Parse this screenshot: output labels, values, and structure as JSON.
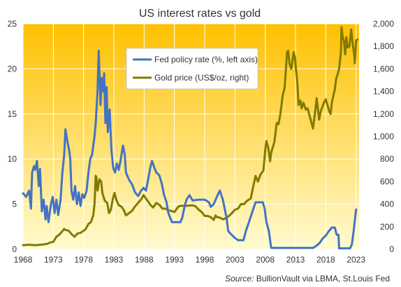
{
  "chart_data": {
    "type": "line",
    "title": "US interest rates vs gold",
    "xlabel": "",
    "ylabel_left": "",
    "ylabel_right": "",
    "x_ticks": [
      "1968",
      "1973",
      "1978",
      "1983",
      "1988",
      "1993",
      "1998",
      "2003",
      "2008",
      "2013",
      "2018",
      "2023"
    ],
    "xlim": [
      1968,
      2023.5
    ],
    "y_left_ticks": [
      "0",
      "5",
      "10",
      "15",
      "20",
      "25"
    ],
    "ylim_left": [
      0,
      25
    ],
    "y_right_ticks": [
      "0",
      "200",
      "400",
      "600",
      "800",
      "1,000",
      "1,200",
      "1,400",
      "1,600",
      "1,800",
      "2,000"
    ],
    "ylim_right": [
      0,
      2000
    ],
    "grid": true,
    "legend_position": "top-center",
    "source_label": "Source:",
    "source_text": "BullionVault via LBMA, St.Louis Fed",
    "colors": {
      "fed": "#4472c4",
      "gold": "#807a00",
      "bg_top": "#ffc000",
      "bg_bottom": "#fffbd0",
      "grid": "#ffffff"
    },
    "series": [
      {
        "name": "Fed policy rate (%, left axis)",
        "axis": "left",
        "points": [
          [
            1968.0,
            6.2
          ],
          [
            1968.5,
            5.8
          ],
          [
            1969.0,
            6.5
          ],
          [
            1969.3,
            4.5
          ],
          [
            1969.5,
            8.5
          ],
          [
            1969.8,
            9.2
          ],
          [
            1970.0,
            8.8
          ],
          [
            1970.3,
            9.8
          ],
          [
            1970.6,
            7.0
          ],
          [
            1970.8,
            8.9
          ],
          [
            1971.1,
            4.2
          ],
          [
            1971.4,
            5.5
          ],
          [
            1971.7,
            3.3
          ],
          [
            1971.9,
            4.8
          ],
          [
            1972.2,
            3.0
          ],
          [
            1972.6,
            5.0
          ],
          [
            1972.9,
            5.8
          ],
          [
            1973.2,
            4.0
          ],
          [
            1973.5,
            5.5
          ],
          [
            1973.8,
            3.8
          ],
          [
            1974.2,
            5.5
          ],
          [
            1974.5,
            8.5
          ],
          [
            1974.8,
            10.5
          ],
          [
            1975.0,
            13.3
          ],
          [
            1975.3,
            12.0
          ],
          [
            1975.6,
            11.0
          ],
          [
            1975.8,
            10.0
          ],
          [
            1976.0,
            6.5
          ],
          [
            1976.3,
            5.5
          ],
          [
            1976.6,
            7.0
          ],
          [
            1976.9,
            5.0
          ],
          [
            1977.2,
            6.3
          ],
          [
            1977.5,
            4.8
          ],
          [
            1977.8,
            6.1
          ],
          [
            1978.1,
            5.7
          ],
          [
            1978.5,
            6.5
          ],
          [
            1978.8,
            8.5
          ],
          [
            1979.1,
            10.0
          ],
          [
            1979.4,
            10.5
          ],
          [
            1979.8,
            12.5
          ],
          [
            1980.0,
            14.0
          ],
          [
            1980.3,
            17.5
          ],
          [
            1980.5,
            22.0
          ],
          [
            1980.8,
            16.0
          ],
          [
            1981.0,
            19.0
          ],
          [
            1981.2,
            17.5
          ],
          [
            1981.4,
            19.5
          ],
          [
            1981.6,
            14.0
          ],
          [
            1981.8,
            18.0
          ],
          [
            1982.0,
            13.0
          ],
          [
            1982.3,
            15.5
          ],
          [
            1982.6,
            11.0
          ],
          [
            1982.9,
            9.0
          ],
          [
            1983.2,
            8.5
          ],
          [
            1983.5,
            9.5
          ],
          [
            1983.8,
            8.8
          ],
          [
            1984.1,
            9.8
          ],
          [
            1984.5,
            11.5
          ],
          [
            1984.8,
            10.5
          ],
          [
            1985.0,
            8.5
          ],
          [
            1985.5,
            7.7
          ],
          [
            1986.0,
            7.2
          ],
          [
            1986.5,
            6.3
          ],
          [
            1987.0,
            5.9
          ],
          [
            1987.5,
            6.5
          ],
          [
            1987.9,
            6.8
          ],
          [
            1988.3,
            6.5
          ],
          [
            1988.6,
            7.5
          ],
          [
            1989.0,
            9.0
          ],
          [
            1989.3,
            9.8
          ],
          [
            1989.7,
            9.0
          ],
          [
            1990.0,
            8.5
          ],
          [
            1990.5,
            8.2
          ],
          [
            1990.9,
            7.3
          ],
          [
            1991.3,
            6.0
          ],
          [
            1991.7,
            5.2
          ],
          [
            1992.0,
            4.0
          ],
          [
            1992.3,
            3.5
          ],
          [
            1992.6,
            3.0
          ],
          [
            1993.0,
            3.0
          ],
          [
            1994.0,
            3.0
          ],
          [
            1994.3,
            3.5
          ],
          [
            1994.7,
            4.8
          ],
          [
            1995.0,
            5.5
          ],
          [
            1995.5,
            6.0
          ],
          [
            1996.0,
            5.4
          ],
          [
            1997.0,
            5.5
          ],
          [
            1998.0,
            5.5
          ],
          [
            1998.7,
            5.2
          ],
          [
            1999.0,
            4.7
          ],
          [
            1999.5,
            5.0
          ],
          [
            2000.0,
            5.8
          ],
          [
            2000.5,
            6.5
          ],
          [
            2001.0,
            5.5
          ],
          [
            2001.3,
            4.5
          ],
          [
            2001.6,
            3.5
          ],
          [
            2001.9,
            2.0
          ],
          [
            2002.3,
            1.7
          ],
          [
            2002.9,
            1.3
          ],
          [
            2003.5,
            1.0
          ],
          [
            2004.4,
            1.0
          ],
          [
            2004.8,
            2.0
          ],
          [
            2005.3,
            3.0
          ],
          [
            2005.8,
            4.0
          ],
          [
            2006.4,
            5.2
          ],
          [
            2007.6,
            5.2
          ],
          [
            2007.9,
            4.5
          ],
          [
            2008.2,
            3.0
          ],
          [
            2008.6,
            2.0
          ],
          [
            2008.9,
            0.5
          ],
          [
            2009.0,
            0.15
          ],
          [
            2015.9,
            0.15
          ],
          [
            2016.5,
            0.4
          ],
          [
            2017.0,
            0.7
          ],
          [
            2017.5,
            1.2
          ],
          [
            2018.0,
            1.5
          ],
          [
            2018.5,
            2.0
          ],
          [
            2019.0,
            2.4
          ],
          [
            2019.5,
            2.4
          ],
          [
            2019.8,
            1.6
          ],
          [
            2020.1,
            1.6
          ],
          [
            2020.2,
            0.1
          ],
          [
            2022.0,
            0.1
          ],
          [
            2022.3,
            0.5
          ],
          [
            2022.6,
            2.0
          ],
          [
            2022.9,
            3.8
          ],
          [
            2023.0,
            4.4
          ]
        ]
      },
      {
        "name": "Gold price (US$/oz, right)",
        "axis": "right",
        "points": [
          [
            1968.0,
            36
          ],
          [
            1969.0,
            40
          ],
          [
            1970.0,
            36
          ],
          [
            1971.0,
            40
          ],
          [
            1972.0,
            48
          ],
          [
            1972.5,
            60
          ],
          [
            1973.0,
            65
          ],
          [
            1973.5,
            110
          ],
          [
            1974.0,
            130
          ],
          [
            1974.5,
            160
          ],
          [
            1974.8,
            180
          ],
          [
            1975.0,
            170
          ],
          [
            1975.5,
            165
          ],
          [
            1976.0,
            135
          ],
          [
            1976.5,
            110
          ],
          [
            1977.0,
            140
          ],
          [
            1977.5,
            145
          ],
          [
            1977.9,
            160
          ],
          [
            1978.3,
            175
          ],
          [
            1978.8,
            225
          ],
          [
            1979.2,
            240
          ],
          [
            1979.6,
            300
          ],
          [
            1979.8,
            400
          ],
          [
            1980.0,
            650
          ],
          [
            1980.1,
            640
          ],
          [
            1980.3,
            520
          ],
          [
            1980.6,
            620
          ],
          [
            1980.9,
            600
          ],
          [
            1981.1,
            500
          ],
          [
            1981.5,
            430
          ],
          [
            1981.9,
            410
          ],
          [
            1982.2,
            320
          ],
          [
            1982.5,
            350
          ],
          [
            1982.8,
            440
          ],
          [
            1983.1,
            500
          ],
          [
            1983.4,
            440
          ],
          [
            1983.8,
            390
          ],
          [
            1984.2,
            380
          ],
          [
            1984.6,
            350
          ],
          [
            1985.0,
            300
          ],
          [
            1985.5,
            320
          ],
          [
            1986.0,
            340
          ],
          [
            1986.5,
            380
          ],
          [
            1987.0,
            410
          ],
          [
            1987.6,
            450
          ],
          [
            1987.9,
            480
          ],
          [
            1988.3,
            450
          ],
          [
            1988.7,
            420
          ],
          [
            1989.0,
            395
          ],
          [
            1989.5,
            370
          ],
          [
            1990.0,
            410
          ],
          [
            1990.6,
            390
          ],
          [
            1991.0,
            360
          ],
          [
            1991.5,
            360
          ],
          [
            1992.0,
            345
          ],
          [
            1992.5,
            340
          ],
          [
            1993.0,
            330
          ],
          [
            1993.4,
            360
          ],
          [
            1993.7,
            380
          ],
          [
            1994.0,
            385
          ],
          [
            1995.0,
            385
          ],
          [
            1996.0,
            390
          ],
          [
            1996.5,
            380
          ],
          [
            1997.0,
            350
          ],
          [
            1997.5,
            330
          ],
          [
            1998.0,
            295
          ],
          [
            1998.5,
            295
          ],
          [
            1999.0,
            285
          ],
          [
            1999.5,
            260
          ],
          [
            1999.8,
            300
          ],
          [
            2000.0,
            285
          ],
          [
            2000.5,
            280
          ],
          [
            2001.0,
            265
          ],
          [
            2001.5,
            275
          ],
          [
            2002.0,
            295
          ],
          [
            2002.5,
            320
          ],
          [
            2003.0,
            350
          ],
          [
            2003.5,
            360
          ],
          [
            2004.0,
            400
          ],
          [
            2004.5,
            400
          ],
          [
            2005.0,
            430
          ],
          [
            2005.6,
            450
          ],
          [
            2006.0,
            550
          ],
          [
            2006.4,
            650
          ],
          [
            2006.8,
            600
          ],
          [
            2007.2,
            660
          ],
          [
            2007.7,
            700
          ],
          [
            2008.0,
            880
          ],
          [
            2008.2,
            960
          ],
          [
            2008.5,
            900
          ],
          [
            2008.8,
            780
          ],
          [
            2009.0,
            860
          ],
          [
            2009.5,
            950
          ],
          [
            2009.9,
            1120
          ],
          [
            2010.2,
            1110
          ],
          [
            2010.5,
            1200
          ],
          [
            2010.9,
            1370
          ],
          [
            2011.2,
            1430
          ],
          [
            2011.6,
            1750
          ],
          [
            2011.8,
            1760
          ],
          [
            2012.0,
            1650
          ],
          [
            2012.3,
            1600
          ],
          [
            2012.7,
            1750
          ],
          [
            2012.9,
            1700
          ],
          [
            2013.3,
            1480
          ],
          [
            2013.5,
            1280
          ],
          [
            2013.8,
            1320
          ],
          [
            2014.0,
            1250
          ],
          [
            2014.3,
            1300
          ],
          [
            2014.7,
            1240
          ],
          [
            2015.0,
            1250
          ],
          [
            2015.5,
            1150
          ],
          [
            2015.9,
            1070
          ],
          [
            2016.2,
            1200
          ],
          [
            2016.5,
            1340
          ],
          [
            2016.9,
            1150
          ],
          [
            2017.2,
            1230
          ],
          [
            2017.7,
            1300
          ],
          [
            2018.0,
            1330
          ],
          [
            2018.6,
            1220
          ],
          [
            2018.8,
            1200
          ],
          [
            2019.0,
            1300
          ],
          [
            2019.5,
            1420
          ],
          [
            2019.7,
            1510
          ],
          [
            2020.0,
            1560
          ],
          [
            2020.2,
            1600
          ],
          [
            2020.5,
            1750
          ],
          [
            2020.6,
            1970
          ],
          [
            2020.8,
            1880
          ],
          [
            2021.0,
            1850
          ],
          [
            2021.2,
            1730
          ],
          [
            2021.4,
            1880
          ],
          [
            2021.6,
            1790
          ],
          [
            2021.9,
            1800
          ],
          [
            2022.2,
            1950
          ],
          [
            2022.4,
            1840
          ],
          [
            2022.7,
            1720
          ],
          [
            2022.8,
            1650
          ],
          [
            2023.0,
            1850
          ],
          [
            2023.2,
            1860
          ]
        ]
      }
    ]
  }
}
